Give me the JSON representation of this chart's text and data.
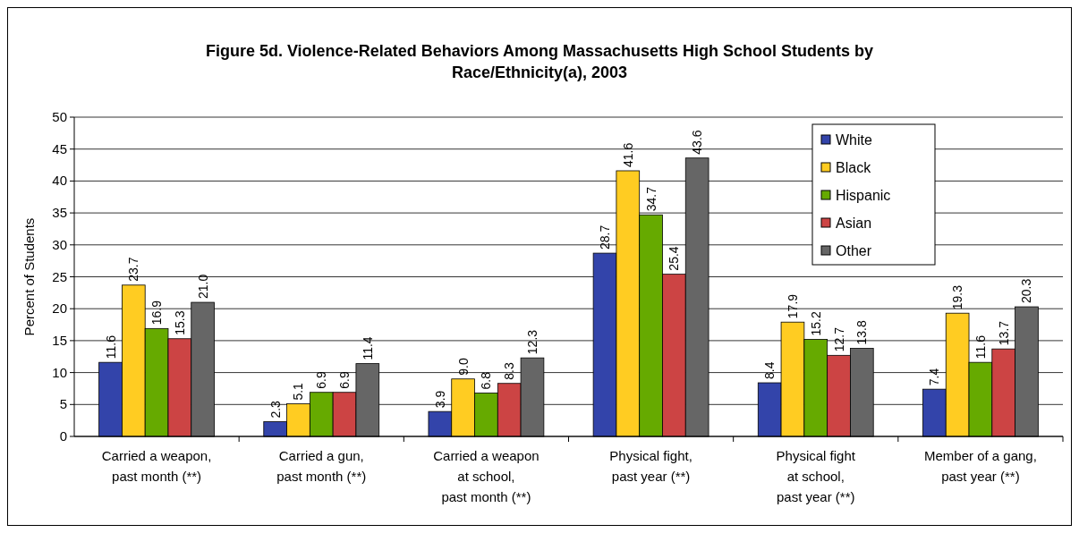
{
  "chart_data": {
    "type": "bar",
    "title": "Figure 5d.  Violence-Related Behaviors Among Massachusetts High School Students by\nRace/Ethnicity(a), 2003",
    "ylabel": "Percent of Students",
    "categories": [
      "Carried a weapon,\npast month (**)",
      "Carried a gun,\npast month (**)",
      "Carried a weapon\nat school,\npast month (**)",
      "Physical fight,\npast year (**)",
      "Physical fight\nat school,\npast year (**)",
      "Member of a gang,\npast year (**)"
    ],
    "series": [
      {
        "name": "White",
        "color": "#3344aa",
        "values": [
          11.6,
          2.3,
          3.9,
          28.7,
          8.4,
          7.4
        ],
        "value_labels": [
          "11.6",
          "2.3",
          "3.9",
          "28.7",
          "8.4",
          "7.4"
        ]
      },
      {
        "name": "Black",
        "color": "#ffcc22",
        "values": [
          23.7,
          5.1,
          9.0,
          41.6,
          17.9,
          19.3
        ],
        "value_labels": [
          "23.7",
          "5.1",
          "9.0",
          "41.6",
          "17.9",
          "19.3"
        ]
      },
      {
        "name": "Hispanic",
        "color": "#66aa00",
        "values": [
          16.9,
          6.9,
          6.8,
          34.7,
          15.2,
          11.6
        ],
        "value_labels": [
          "16.9",
          "6.9",
          "6.8",
          "34.7",
          "15.2",
          "11.6"
        ]
      },
      {
        "name": "Asian",
        "color": "#cc4444",
        "values": [
          15.3,
          6.9,
          8.3,
          25.4,
          12.7,
          13.7
        ],
        "value_labels": [
          "15.3",
          "6.9",
          "8.3",
          "25.4",
          "12.7",
          "13.7"
        ]
      },
      {
        "name": "Other",
        "color": "#666666",
        "values": [
          21.0,
          11.4,
          12.3,
          43.6,
          13.8,
          20.3
        ],
        "value_labels": [
          "21.0",
          "11.4",
          "12.3",
          "43.6",
          "13.8",
          "20.3"
        ]
      }
    ],
    "ylim": [
      0,
      50
    ],
    "yticks": [
      0,
      5,
      10,
      15,
      20,
      25,
      30,
      35,
      40,
      45,
      50
    ],
    "grid": "y",
    "legend": "top right"
  }
}
